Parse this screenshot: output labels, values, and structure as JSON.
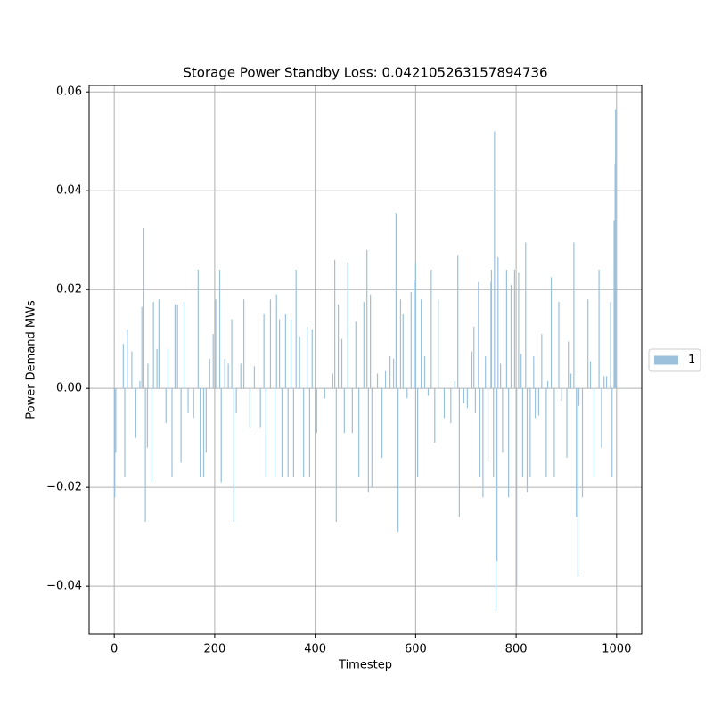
{
  "chart_data": {
    "type": "bar",
    "title": "Storage Power Standby Loss: 0.042105263157894736",
    "x_label": "Timestep",
    "y_label": "Power Demand MWs",
    "xlim": [
      -50,
      1050
    ],
    "ylim": [
      -0.0497,
      0.0613
    ],
    "xticks": [
      0,
      200,
      400,
      600,
      800,
      1000
    ],
    "yticks": [
      {
        "value": -0.04,
        "label": "−0.04"
      },
      {
        "value": -0.02,
        "label": "−0.02"
      },
      {
        "value": 0,
        "label": "0.00"
      },
      0.02,
      0.04,
      0.06
    ],
    "grid": true,
    "legend_position": "right",
    "x": [
      1,
      3,
      18,
      21,
      26,
      35,
      43,
      51,
      55,
      59,
      62,
      66,
      67,
      75,
      78,
      85,
      89,
      103,
      107,
      115,
      121,
      126,
      133,
      139,
      147,
      158,
      167,
      171,
      178,
      183,
      190,
      197,
      202,
      210,
      213,
      220,
      227,
      234,
      238,
      243,
      252,
      258,
      270,
      279,
      291,
      298,
      302,
      311,
      320,
      323,
      329,
      334,
      341,
      346,
      352,
      357,
      362,
      369,
      377,
      384,
      389,
      394,
      403,
      419,
      435,
      439,
      442,
      446,
      453,
      458,
      465,
      474,
      481,
      487,
      497,
      503,
      506,
      510,
      513,
      524,
      533,
      540,
      549,
      556,
      561,
      565,
      570,
      575,
      583,
      591,
      597,
      600,
      604,
      611,
      618,
      625,
      631,
      638,
      645,
      657,
      670,
      678,
      684,
      687,
      696,
      703,
      712,
      716,
      719,
      725,
      728,
      734,
      739,
      744,
      750,
      751,
      755,
      757,
      760,
      762,
      764,
      769,
      773,
      781,
      785,
      790,
      797,
      801,
      805,
      810,
      813,
      819,
      822,
      828,
      835,
      838,
      845,
      851,
      860,
      863,
      870,
      876,
      885,
      890,
      901,
      904,
      909,
      915,
      920,
      923,
      925,
      932,
      943,
      948,
      955,
      965,
      970,
      975,
      980,
      988,
      991,
      995,
      997,
      998
    ],
    "series": [
      {
        "name": "1",
        "color": "#9cc1dc",
        "values": [
          -0.022,
          -0.013,
          0.009,
          -0.018,
          0.012,
          0.0075,
          -0.01,
          0.0015,
          0.0165,
          0.0325,
          -0.027,
          -0.012,
          0.005,
          -0.019,
          0.0175,
          0.008,
          0.018,
          -0.007,
          0.008,
          -0.018,
          0.017,
          0.017,
          -0.015,
          0.0175,
          -0.005,
          -0.006,
          0.024,
          -0.018,
          -0.018,
          -0.013,
          0.006,
          0.011,
          0.018,
          0.024,
          -0.019,
          0.006,
          0.005,
          0.014,
          -0.027,
          -0.005,
          0.005,
          0.018,
          -0.008,
          0.0045,
          -0.008,
          0.015,
          -0.018,
          0.018,
          -0.018,
          0.019,
          0.014,
          -0.018,
          0.015,
          -0.018,
          0.014,
          -0.018,
          0.024,
          0.0105,
          -0.018,
          0.0125,
          -0.018,
          0.012,
          -0.009,
          -0.002,
          0.003,
          0.026,
          -0.027,
          0.017,
          0.01,
          -0.009,
          0.0255,
          -0.009,
          0.0135,
          -0.018,
          0.0175,
          0.028,
          -0.021,
          0.019,
          -0.02,
          0.003,
          -0.014,
          0.0035,
          0.0065,
          0.006,
          0.0355,
          -0.029,
          0.018,
          0.015,
          -0.002,
          0.0195,
          0.022,
          0.0255,
          -0.018,
          0.018,
          0.0065,
          -0.0015,
          0.024,
          -0.011,
          0.018,
          -0.006,
          -0.007,
          0.0015,
          0.027,
          -0.026,
          -0.003,
          -0.004,
          0.0075,
          0.0125,
          -0.005,
          0.0215,
          -0.018,
          -0.022,
          0.0065,
          -0.015,
          0.0215,
          0.024,
          -0.018,
          0.052,
          -0.045,
          -0.035,
          0.0265,
          0.005,
          -0.013,
          0.024,
          -0.022,
          0.021,
          0.024,
          -0.04,
          0.0235,
          0.007,
          -0.018,
          0.0295,
          -0.021,
          -0.018,
          0.0065,
          -0.006,
          -0.0055,
          0.011,
          -0.018,
          0.0015,
          0.0225,
          -0.018,
          0.0175,
          -0.0025,
          -0.014,
          0.0095,
          0.003,
          0.0295,
          -0.026,
          -0.038,
          -0.0035,
          -0.022,
          0.018,
          0.0055,
          -0.018,
          0.024,
          -0.012,
          0.0025,
          0.0025,
          0.0175,
          -0.018,
          0.034,
          0.0455,
          0.0565
        ]
      }
    ]
  }
}
